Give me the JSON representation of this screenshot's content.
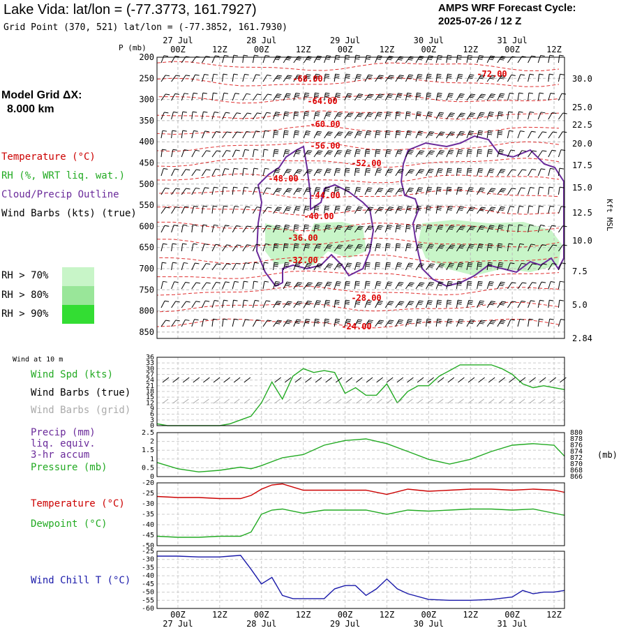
{
  "header": {
    "title": "Lake Vida:  lat/lon = (-77.3773, 161.7927)",
    "grid_point": "Grid Point (370, 521) lat/lon = (-77.3852, 161.7930)",
    "cycle_label": "AMPS WRF Forecast Cycle:",
    "cycle_value": "2025-07-26 / 12  Z"
  },
  "left_panel": {
    "model_grid_label": "Model Grid ΔX:",
    "model_grid_value": "8.000 km",
    "legend": [
      {
        "text": "Temperature (°C)",
        "color": "#cc0000"
      },
      {
        "text": "RH (%, WRT liq. wat.)",
        "color": "#22aa22"
      },
      {
        "text": "Cloud/Precip Outline",
        "color": "#6a2a9a"
      },
      {
        "text": "Wind Barbs (kts) (true)",
        "color": "#000000"
      }
    ],
    "rh_scale": [
      {
        "text": "RH > 70%",
        "color": "#c8f5c8"
      },
      {
        "text": "RH > 80%",
        "color": "#99e699"
      },
      {
        "text": "RH > 90%",
        "color": "#33dd33"
      }
    ],
    "pressure_axis_label": "P (mb)"
  },
  "time_axis": {
    "ticks": [
      "00Z",
      "12Z",
      "00Z",
      "12Z",
      "00Z",
      "12Z",
      "00Z",
      "12Z",
      "00Z",
      "12Z"
    ],
    "dates": [
      "27 Jul",
      "28 Jul",
      "29 Jul",
      "30 Jul",
      "31 Jul"
    ]
  },
  "chart_data": [
    {
      "type": "heatmap",
      "name": "upper-air cross-section",
      "y_ticks_left": [
        "200",
        "250",
        "300",
        "350",
        "400",
        "450",
        "500",
        "550",
        "600",
        "650",
        "700",
        "750",
        "800",
        "850"
      ],
      "y_ticks_right": [
        "30.0",
        "25.0",
        "22.5",
        "20.0",
        "17.5",
        "15.0",
        "12.5",
        "10.0",
        "7.5",
        "5.0",
        "2.84"
      ],
      "right_axis_label": "Kft MSL",
      "temperature_labels": [
        "-72.00",
        "-68.00",
        "-64.00",
        "-60.00",
        "-56.00",
        "-52.00",
        "-48.00",
        "-44.00",
        "-40.00",
        "-36.00",
        "-32.00",
        "-28.00",
        "-24.00"
      ],
      "temperature_color": "#dd0000",
      "cloud_color": "#6a2a9a",
      "rh_color": "#c8f5c8"
    },
    {
      "type": "line",
      "name": "surface wind",
      "header": "Wind at 10 m",
      "labels": [
        {
          "text": "Wind Spd (kts)",
          "color": "#22aa22"
        },
        {
          "text": "Wind Barbs (true)",
          "color": "#000000"
        },
        {
          "text": "Wind Barbs (grid)",
          "color": "#aaaaaa"
        }
      ],
      "y_ticks": [
        "36",
        "33",
        "30",
        "27",
        "24",
        "21",
        "18",
        "15",
        "12",
        "9",
        "6",
        "3",
        "0"
      ],
      "ylim": [
        0,
        36
      ],
      "series": [
        {
          "color": "#22aa22",
          "x": [
            0,
            3,
            6,
            9,
            12,
            15,
            18,
            21,
            24,
            27,
            30,
            33,
            36,
            39,
            42,
            45,
            48,
            51,
            54,
            57,
            60,
            63,
            66,
            69,
            72,
            75,
            78,
            81,
            84,
            87,
            90,
            93,
            96,
            99,
            102,
            105,
            108,
            111,
            114,
            117
          ],
          "values": [
            1,
            0,
            0,
            0,
            0,
            0,
            0,
            1,
            3,
            5,
            12,
            23,
            14,
            26,
            30,
            28,
            29,
            28,
            17,
            20,
            16,
            16,
            22,
            12,
            18,
            21,
            21,
            26,
            29,
            32,
            32,
            32,
            32,
            30,
            27,
            22,
            20,
            21,
            20,
            19
          ]
        }
      ]
    },
    {
      "type": "line",
      "name": "precip and pressure",
      "labels": [
        {
          "text": "Precip (mm)",
          "color": "#6a2a9a"
        },
        {
          "text": "liq. equiv.",
          "color": "#6a2a9a"
        },
        {
          "text": "3-hr accum",
          "color": "#6a2a9a"
        },
        {
          "text": "Pressure (mb)",
          "color": "#22aa22"
        }
      ],
      "y_ticks_left": [
        "2.5",
        "2",
        "1.5",
        "1",
        "0.5",
        "0"
      ],
      "y_ticks_right": [
        "880",
        "878",
        "876",
        "874",
        "872",
        "870",
        "868",
        "866"
      ],
      "right_unit": "(mb)",
      "ylim_left": [
        0,
        2.5
      ],
      "ylim_right": [
        866,
        880
      ],
      "series": [
        {
          "color": "#22aa22",
          "x": [
            0,
            6,
            12,
            18,
            24,
            27,
            30,
            36,
            42,
            48,
            54,
            60,
            66,
            72,
            78,
            84,
            90,
            96,
            102,
            108,
            114,
            117
          ],
          "values": [
            870.5,
            868.5,
            867.5,
            868,
            869,
            868.5,
            869.5,
            872,
            873,
            876,
            877.5,
            878,
            876.5,
            874,
            871.5,
            870,
            871.5,
            874,
            876,
            876.5,
            876,
            872.5
          ]
        }
      ]
    },
    {
      "type": "line",
      "name": "temperature and dewpoint",
      "labels": [
        {
          "text": "Temperature (°C)",
          "color": "#cc0000"
        },
        {
          "text": "Dewpoint (°C)",
          "color": "#22aa22"
        }
      ],
      "y_ticks": [
        "-20",
        "-25",
        "-30",
        "-35",
        "-40",
        "-45",
        "-50"
      ],
      "ylim": [
        -50,
        -20
      ],
      "series": [
        {
          "color": "#cc0000",
          "x": [
            0,
            6,
            12,
            18,
            24,
            27,
            30,
            33,
            36,
            42,
            48,
            54,
            60,
            66,
            72,
            78,
            84,
            90,
            96,
            102,
            108,
            114,
            117
          ],
          "values": [
            -26.5,
            -27,
            -27,
            -27.5,
            -27.5,
            -26,
            -23,
            -21,
            -20.5,
            -23.5,
            -23.5,
            -23.5,
            -23.5,
            -25.5,
            -23,
            -24,
            -23.5,
            -23,
            -23,
            -23.5,
            -23,
            -23.5,
            -24.5
          ]
        },
        {
          "color": "#22aa22",
          "x": [
            0,
            6,
            12,
            18,
            24,
            27,
            30,
            33,
            36,
            42,
            48,
            54,
            60,
            66,
            72,
            78,
            84,
            90,
            96,
            102,
            108,
            114,
            117
          ],
          "values": [
            -45.5,
            -46,
            -46,
            -45.5,
            -45.5,
            -43.5,
            -35,
            -33,
            -32.5,
            -34.5,
            -33,
            -33,
            -33,
            -35,
            -33,
            -33.5,
            -33,
            -32.5,
            -32.5,
            -33,
            -32.5,
            -34.5,
            -35.5
          ]
        }
      ]
    },
    {
      "type": "line",
      "name": "wind chill",
      "labels": [
        {
          "text": "Wind Chill T (°C)",
          "color": "#1a1aaa"
        }
      ],
      "y_ticks": [
        "-25",
        "-30",
        "-35",
        "-40",
        "-45",
        "-50",
        "-55",
        "-60"
      ],
      "ylim": [
        -60,
        -25
      ],
      "series": [
        {
          "color": "#1a1aaa",
          "x": [
            0,
            6,
            12,
            18,
            21,
            24,
            27,
            30,
            33,
            36,
            39,
            42,
            48,
            51,
            54,
            57,
            60,
            63,
            66,
            69,
            72,
            78,
            84,
            90,
            96,
            102,
            105,
            108,
            111,
            114,
            117
          ],
          "values": [
            -28,
            -28,
            -28.5,
            -28.5,
            -28,
            -27.5,
            -36,
            -45,
            -41,
            -52,
            -54,
            -54,
            -54,
            -48,
            -46,
            -46,
            -52,
            -48,
            -42,
            -48,
            -51,
            -54.5,
            -55,
            -55,
            -54.5,
            -53,
            -49,
            -51,
            -50,
            -50,
            -49
          ]
        }
      ]
    }
  ]
}
